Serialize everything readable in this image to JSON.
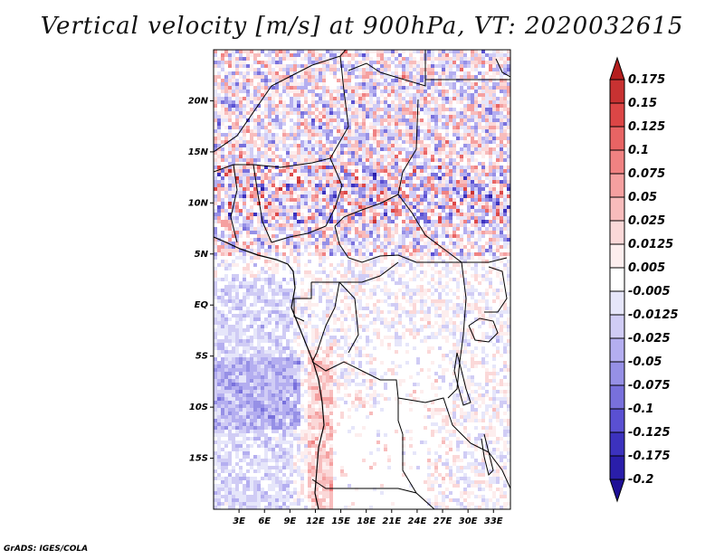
{
  "title": "Vertical velocity [m/s] at 900hPa, VT: 2020032615",
  "credit": "GrADS: IGES/COLA",
  "map": {
    "lon_range": [
      0,
      35
    ],
    "lat_range": [
      -20,
      25
    ],
    "lat_labels": [
      "20N",
      "15N",
      "10N",
      "5N",
      "EQ",
      "5S",
      "10S",
      "15S"
    ],
    "lat_values": [
      20,
      15,
      10,
      5,
      0,
      -5,
      -10,
      -15
    ],
    "lon_labels": [
      "3E",
      "6E",
      "9E",
      "12E",
      "15E",
      "18E",
      "21E",
      "24E",
      "27E",
      "30E",
      "33E"
    ],
    "lon_values": [
      3,
      6,
      9,
      12,
      15,
      18,
      21,
      24,
      27,
      30,
      33
    ]
  },
  "colorbar": {
    "labels": [
      "0.175",
      "0.15",
      "0.125",
      "0.1",
      "0.075",
      "0.05",
      "0.025",
      "0.0125",
      "0.005",
      "-0.005",
      "-0.0125",
      "-0.025",
      "-0.05",
      "-0.075",
      "-0.1",
      "-0.125",
      "-0.175",
      "-0.2"
    ],
    "colors": [
      "#b41e1e",
      "#c83232",
      "#dc4646",
      "#e86464",
      "#f08282",
      "#f5a0a0",
      "#f8bcbc",
      "#fbd8d8",
      "#fdeeee",
      "#ffffff",
      "#e6e6fa",
      "#d0ccf5",
      "#b4aef0",
      "#9690e6",
      "#7870dc",
      "#5a50d2",
      "#3c32be",
      "#2a1eaa",
      "#1e0f96"
    ]
  }
}
